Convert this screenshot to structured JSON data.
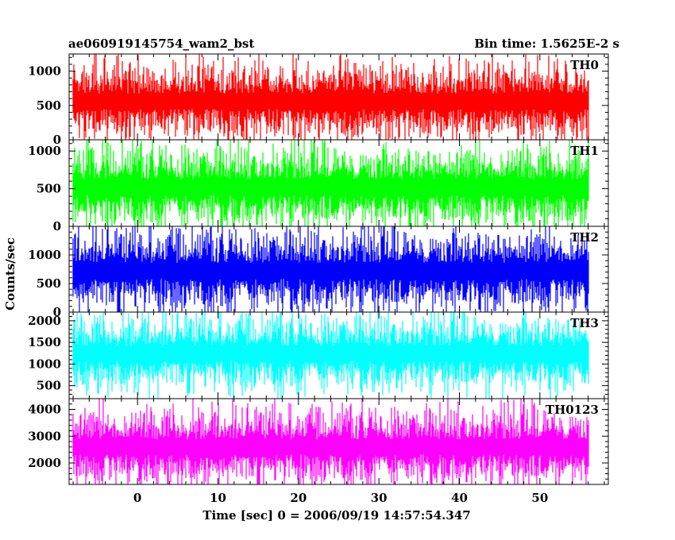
{
  "header": {
    "title": "ae060919145754_wam2_bst",
    "bin_time": "Bin time: 1.5625E-2 s"
  },
  "chart_data": {
    "type": "line",
    "xlabel": "Time [sec] 0 = 2006/09/19 14:57:54.347",
    "ylabel": "Counts/sec",
    "xlim": [
      -8.5,
      58.5
    ],
    "x_ticks": [
      0,
      10,
      20,
      30,
      40,
      50
    ],
    "x_tick_labels": [
      "0",
      "10",
      "20",
      "30",
      "40",
      "50"
    ],
    "data_x_range": [
      -8,
      56
    ],
    "bin_time_s": 0.015625,
    "grid": false,
    "panels": [
      {
        "name": "TH0",
        "color": "#ff0000",
        "ylim": [
          0,
          1250
        ],
        "y_ticks": [
          0,
          500,
          1000
        ],
        "y_tick_labels": [
          "0",
          "500",
          "1000"
        ],
        "mean": 560,
        "typical_min": 60,
        "typical_max": 1100
      },
      {
        "name": "TH1",
        "color": "#00ff00",
        "ylim": [
          0,
          1150
        ],
        "y_ticks": [
          0,
          500,
          1000
        ],
        "y_tick_labels": [
          "0",
          "500",
          "1000"
        ],
        "mean": 520,
        "typical_min": 60,
        "typical_max": 1050
      },
      {
        "name": "TH2",
        "color": "#0000ff",
        "ylim": [
          0,
          1500
        ],
        "y_ticks": [
          0,
          500,
          1000
        ],
        "y_tick_labels": [
          "0",
          "500",
          "1000"
        ],
        "mean": 720,
        "typical_min": 100,
        "typical_max": 1400
      },
      {
        "name": "TH3",
        "color": "#00ffff",
        "ylim": [
          200,
          2200
        ],
        "y_ticks": [
          500,
          1000,
          1500,
          2000
        ],
        "y_tick_labels": [
          "500",
          "1000",
          "1500",
          "2000"
        ],
        "mean": 1250,
        "typical_min": 400,
        "typical_max": 2000
      },
      {
        "name": "TH0123",
        "color": "#ff00ff",
        "ylim": [
          1200,
          4400
        ],
        "y_ticks": [
          2000,
          3000,
          4000
        ],
        "y_tick_labels": [
          "2000",
          "3000",
          "4000"
        ],
        "mean": 2600,
        "typical_min": 1400,
        "typical_max": 4000
      }
    ]
  }
}
